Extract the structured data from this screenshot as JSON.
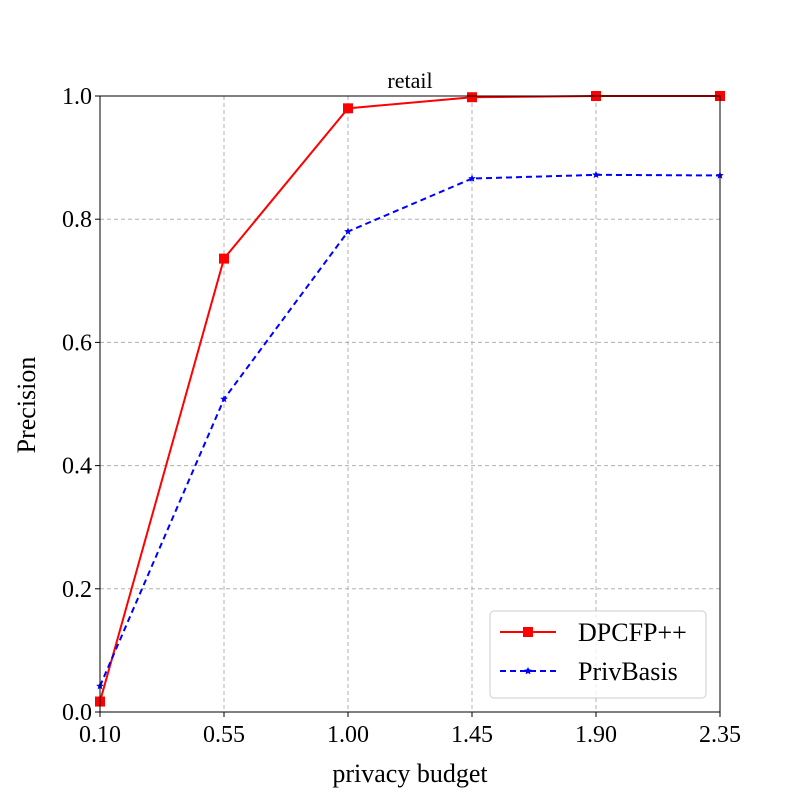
{
  "chart_data": {
    "type": "line",
    "title": "retail",
    "xlabel": "privacy budget",
    "ylabel": "Precision",
    "x": [
      0.1,
      0.55,
      1.0,
      1.45,
      1.9,
      2.35
    ],
    "x_tick_labels": [
      "0.10",
      "0.55",
      "1.00",
      "1.45",
      "1.90",
      "2.35"
    ],
    "y_tick_labels": [
      "0.0",
      "0.2",
      "0.4",
      "0.6",
      "0.8",
      "1.0"
    ],
    "y_ticks": [
      0.0,
      0.2,
      0.4,
      0.6,
      0.8,
      1.0
    ],
    "xlim": [
      0.1,
      2.35
    ],
    "ylim": [
      0.0,
      1.0
    ],
    "grid": true,
    "legend_position": "bottom-right",
    "series": [
      {
        "name": "DPCFP++",
        "values": [
          0.017,
          0.736,
          0.98,
          0.998,
          1.0,
          1.0
        ],
        "color": "#ff0000",
        "line_style": "solid",
        "marker": "square"
      },
      {
        "name": "PrivBasis",
        "values": [
          0.042,
          0.508,
          0.78,
          0.866,
          0.872,
          0.871
        ],
        "color": "#0000ff",
        "line_style": "dashed",
        "marker": "star"
      }
    ]
  }
}
